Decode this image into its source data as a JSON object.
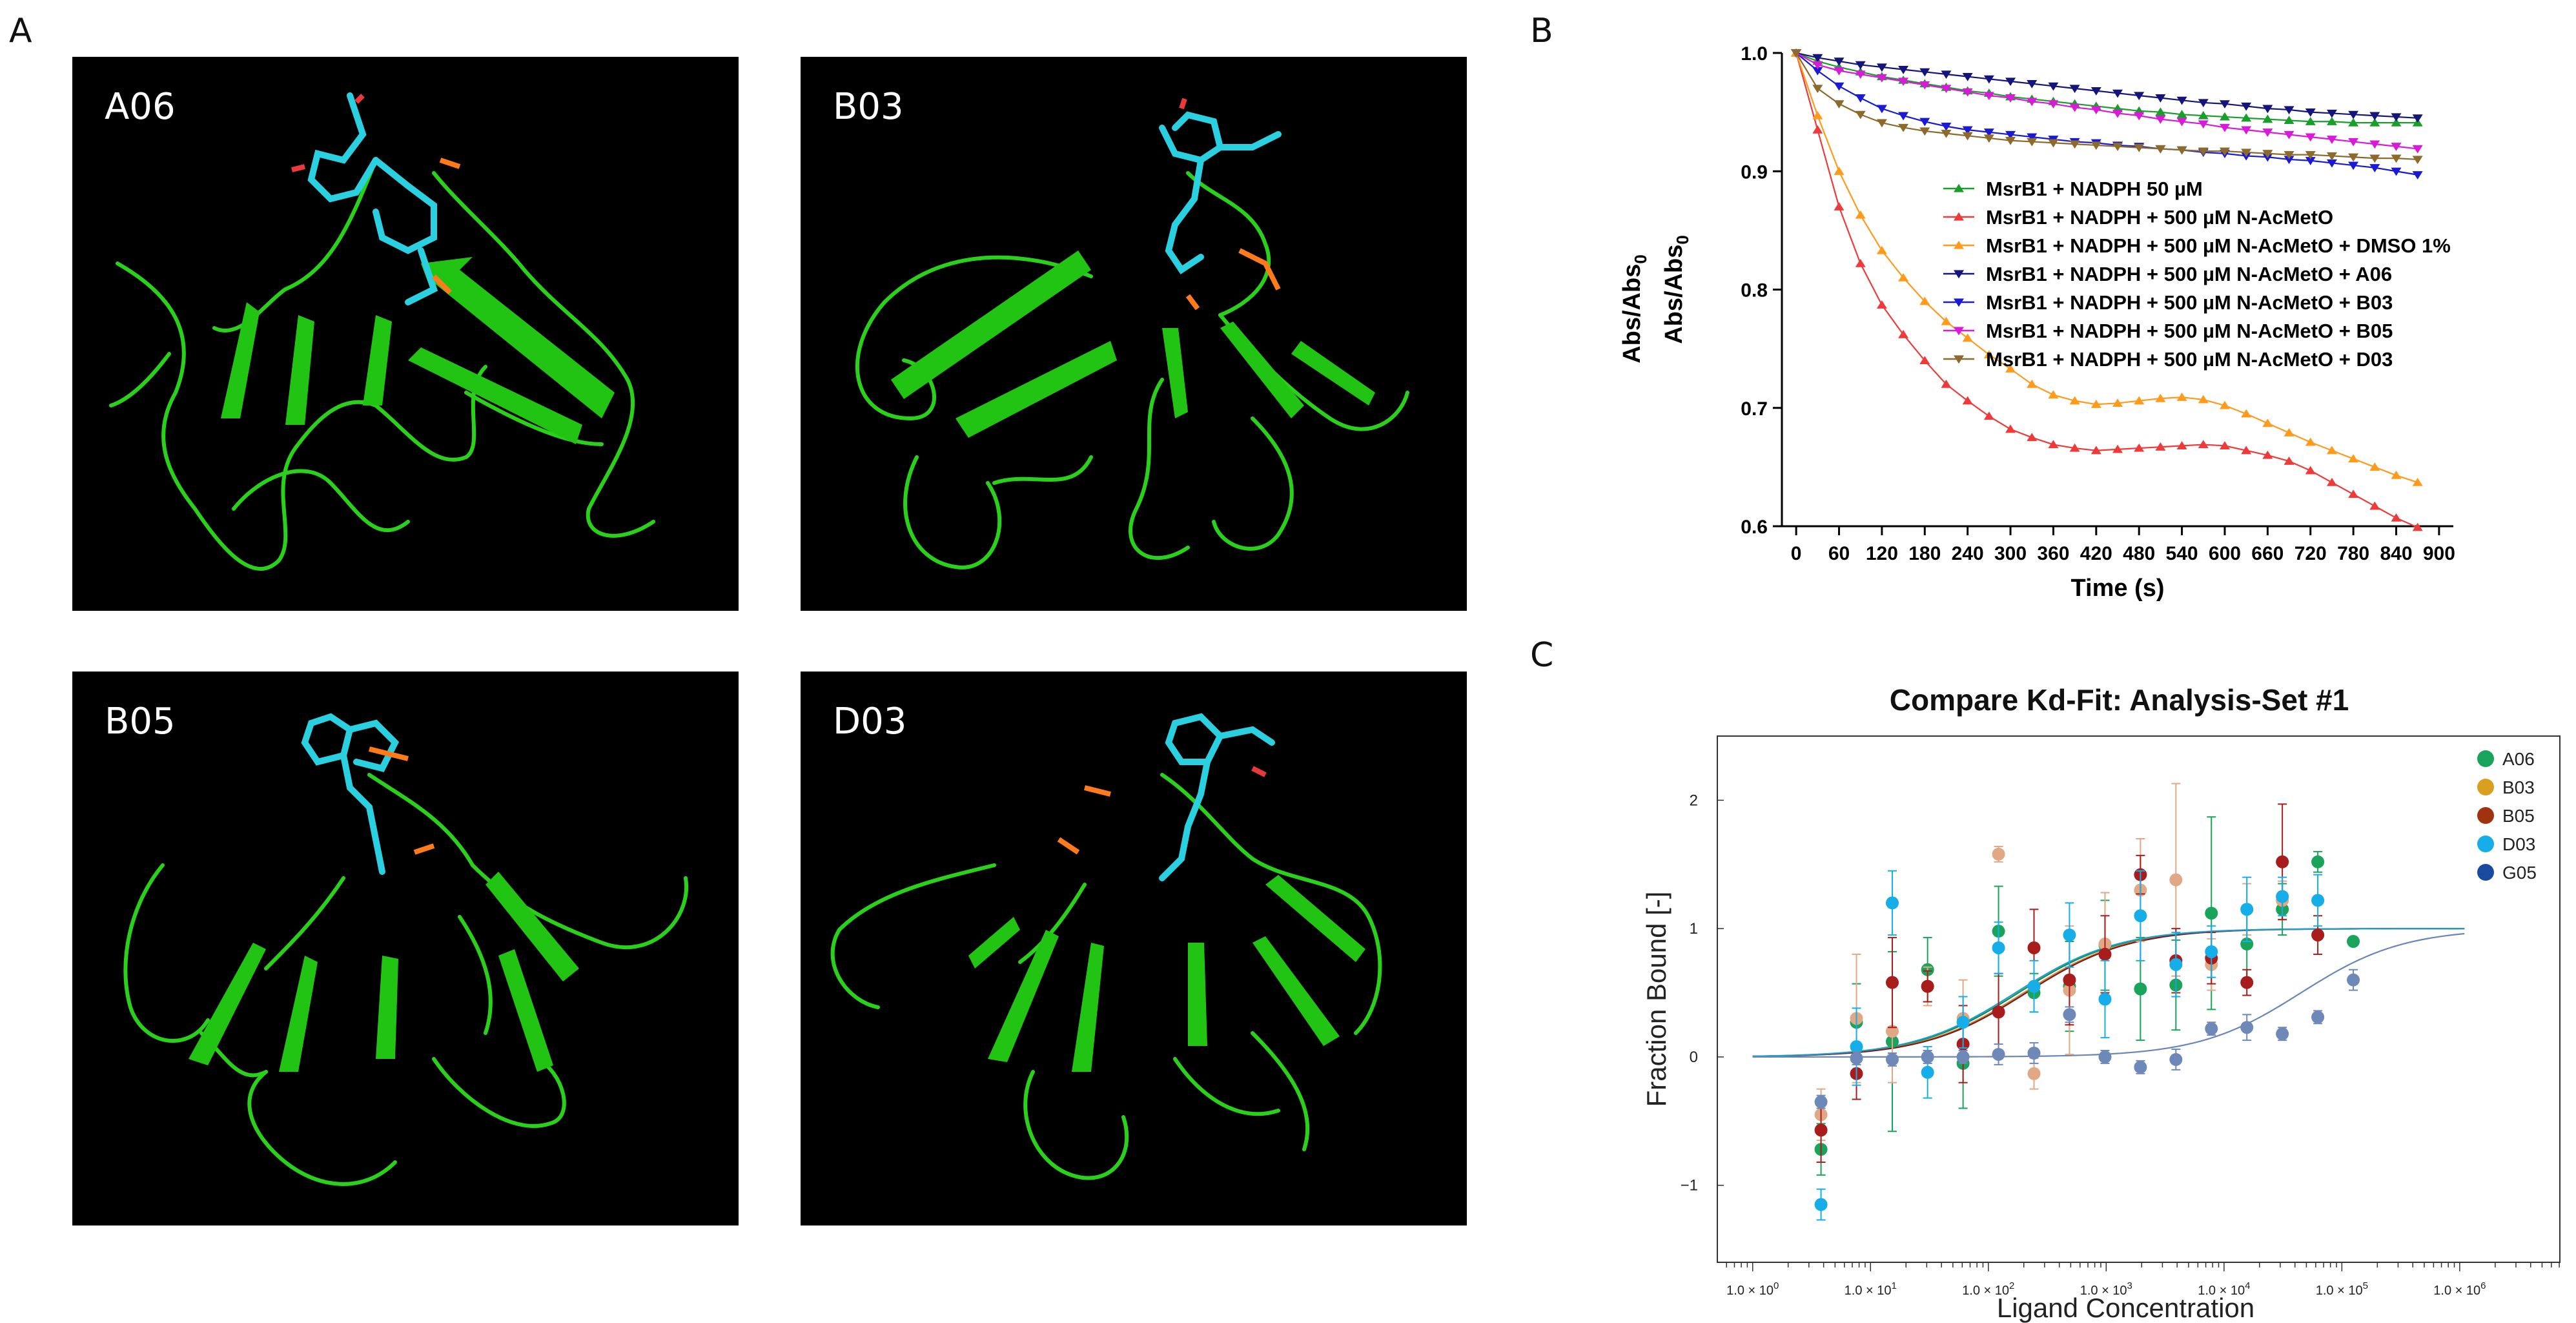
{
  "panel_labels": {
    "a": "A",
    "b": "B",
    "c": "C"
  },
  "structures": [
    {
      "label": "A06"
    },
    {
      "label": "B03"
    },
    {
      "label": "B05"
    },
    {
      "label": "D03"
    }
  ],
  "chart_data": [
    {
      "type": "line",
      "xlabel": "Time (s)",
      "ylabel": "Abs/Abs0",
      "ylabel_main": "Abs/Abs",
      "ylabel_sub": "0",
      "xlim": [
        -20,
        920
      ],
      "ylim": [
        0.6,
        1.0
      ],
      "xticks": [
        0,
        60,
        120,
        180,
        240,
        300,
        360,
        420,
        480,
        540,
        600,
        660,
        720,
        780,
        840,
        900
      ],
      "xtick_labels": [
        "0",
        "60",
        "120",
        "180",
        "240",
        "300",
        "360",
        "420",
        "480",
        "540",
        "600",
        "660",
        "720",
        "780",
        "840",
        "900"
      ],
      "yticks": [
        0.6,
        0.7,
        0.8,
        0.9,
        1.0
      ],
      "ytick_labels": [
        "0.6",
        "0.7",
        "0.8",
        "0.9",
        "1.0"
      ],
      "x": [
        0,
        30,
        60,
        90,
        120,
        150,
        180,
        210,
        240,
        270,
        300,
        330,
        360,
        390,
        420,
        450,
        480,
        510,
        540,
        570,
        600,
        630,
        660,
        690,
        720,
        750,
        780,
        810,
        840,
        870
      ],
      "series": [
        {
          "name": "MsrB1 + NADPH 50 µM",
          "color": "#1a9e2a",
          "marker": "triangle-up",
          "values": [
            1.0,
            0.993,
            0.988,
            0.984,
            0.98,
            0.977,
            0.974,
            0.971,
            0.968,
            0.966,
            0.963,
            0.961,
            0.959,
            0.957,
            0.955,
            0.953,
            0.951,
            0.95,
            0.948,
            0.947,
            0.946,
            0.945,
            0.944,
            0.943,
            0.942,
            0.942,
            0.941,
            0.941,
            0.941,
            0.941
          ]
        },
        {
          "name": "MsrB1 + NADPH + 500 µM N-AcMetO",
          "color": "#f03a3a",
          "marker": "triangle-up",
          "values": [
            1.0,
            0.935,
            0.87,
            0.822,
            0.787,
            0.762,
            0.74,
            0.72,
            0.706,
            0.693,
            0.682,
            0.675,
            0.669,
            0.666,
            0.664,
            0.665,
            0.666,
            0.667,
            0.668,
            0.669,
            0.668,
            0.664,
            0.66,
            0.655,
            0.647,
            0.637,
            0.627,
            0.617,
            0.607,
            0.599
          ]
        },
        {
          "name": "MsrB1 + NADPH + 500 µM N-AcMetO + DMSO 1%",
          "color": "#ff9a1a",
          "marker": "triangle-up",
          "values": [
            1.0,
            0.947,
            0.9,
            0.863,
            0.833,
            0.81,
            0.79,
            0.773,
            0.759,
            0.745,
            0.733,
            0.72,
            0.711,
            0.706,
            0.703,
            0.704,
            0.706,
            0.708,
            0.709,
            0.707,
            0.702,
            0.695,
            0.687,
            0.679,
            0.671,
            0.664,
            0.657,
            0.65,
            0.643,
            0.637
          ]
        },
        {
          "name": "MsrB1 + NADPH + 500 µM N-AcMetO + A06",
          "color": "#14147a",
          "marker": "triangle-down",
          "values": [
            1.0,
            0.996,
            0.993,
            0.99,
            0.988,
            0.986,
            0.984,
            0.982,
            0.98,
            0.978,
            0.976,
            0.974,
            0.972,
            0.97,
            0.968,
            0.966,
            0.964,
            0.962,
            0.96,
            0.958,
            0.957,
            0.955,
            0.953,
            0.952,
            0.95,
            0.949,
            0.948,
            0.947,
            0.946,
            0.945
          ]
        },
        {
          "name": "MsrB1 + NADPH + 500 µM N-AcMetO + B03",
          "color": "#1a1ad6",
          "marker": "triangle-down",
          "values": [
            1.0,
            0.985,
            0.972,
            0.962,
            0.953,
            0.947,
            0.942,
            0.938,
            0.935,
            0.933,
            0.931,
            0.929,
            0.927,
            0.925,
            0.924,
            0.922,
            0.921,
            0.919,
            0.918,
            0.916,
            0.915,
            0.913,
            0.912,
            0.91,
            0.909,
            0.907,
            0.905,
            0.903,
            0.9,
            0.897
          ]
        },
        {
          "name": "MsrB1 + NADPH + 500 µM N-AcMetO + B05",
          "color": "#d91ad9",
          "marker": "triangle-down",
          "values": [
            1.0,
            0.99,
            0.985,
            0.982,
            0.979,
            0.976,
            0.973,
            0.97,
            0.967,
            0.964,
            0.962,
            0.959,
            0.957,
            0.954,
            0.952,
            0.949,
            0.947,
            0.944,
            0.942,
            0.94,
            0.937,
            0.935,
            0.933,
            0.931,
            0.929,
            0.927,
            0.925,
            0.923,
            0.921,
            0.919
          ]
        },
        {
          "name": "MsrB1 + NADPH + 500 µM N-AcMetO + D03",
          "color": "#8b6a2b",
          "marker": "triangle-down",
          "values": [
            1.0,
            0.97,
            0.957,
            0.948,
            0.941,
            0.937,
            0.934,
            0.932,
            0.93,
            0.928,
            0.926,
            0.925,
            0.924,
            0.923,
            0.922,
            0.921,
            0.92,
            0.919,
            0.918,
            0.917,
            0.917,
            0.916,
            0.915,
            0.914,
            0.914,
            0.913,
            0.912,
            0.911,
            0.911,
            0.91
          ]
        }
      ]
    },
    {
      "type": "scatter",
      "title": "Compare Kd-Fit: Analysis-Set #1",
      "xlabel": "Ligand Concentration",
      "ylabel": "Fraction Bound [-]",
      "xscale": "log",
      "xlim_exp": [
        -0.3,
        6.85
      ],
      "ylim": [
        -1.6,
        2.5
      ],
      "xtick_exps": [
        0,
        1,
        2,
        3,
        4,
        5,
        6
      ],
      "xtick_labels": [
        "1.0 × 10",
        "1.0 × 10",
        "1.0 × 10",
        "1.0 × 10",
        "1.0 × 10",
        "1.0 × 10",
        "1.0 × 10"
      ],
      "xtick_sups": [
        "0",
        "1",
        "2",
        "3",
        "4",
        "5",
        "6"
      ],
      "yticks": [
        -1,
        0,
        1,
        2
      ],
      "ytick_labels": [
        "−1",
        "0",
        "1",
        "2"
      ],
      "legend": [
        "A06",
        "B03",
        "B05",
        "D03",
        "G05"
      ],
      "fits": [
        {
          "name": "A06 fit",
          "color": "#168a50",
          "kd": 180
        },
        {
          "name": "B03 fit",
          "color": "#c98a3a",
          "kd": 200
        },
        {
          "name": "B05 fit",
          "color": "#7a1c1c",
          "kd": 210
        },
        {
          "name": "D03 fit",
          "color": "#1a9fcf",
          "kd": 170
        },
        {
          "name": "G05 fit",
          "color": "#6a86b8",
          "kd": 45000
        }
      ],
      "series": [
        {
          "name": "A06",
          "color": "#1aa35a",
          "legend_color": "#1aa35a",
          "x": [
            3.8,
            7.6,
            15.3,
            30.5,
            61,
            122,
            244,
            488,
            977,
            1953,
            3906,
            7812,
            15625,
            31250,
            62500,
            125000
          ],
          "y": [
            -0.72,
            0.27,
            0.12,
            0.68,
            -0.05,
            0.98,
            0.5,
            0.55,
            0.87,
            0.53,
            0.56,
            1.12,
            0.88,
            1.15,
            1.52,
            0.9
          ],
          "err": [
            0.2,
            0.3,
            0.7,
            0.25,
            0.35,
            0.35,
            0.15,
            0.35,
            0.35,
            0.4,
            0.35,
            0.75,
            0.3,
            0.2,
            0.08,
            0.0
          ]
        },
        {
          "name": "B03",
          "color": "#e0a884",
          "legend_color": "#d9a020",
          "x": [
            3.8,
            7.6,
            15.3,
            30.5,
            61,
            122,
            244,
            488,
            977,
            1953,
            3906,
            7812,
            15625,
            31250
          ],
          "y": [
            -0.45,
            0.3,
            0.2,
            0.55,
            0.3,
            1.58,
            -0.13,
            0.52,
            0.88,
            1.3,
            1.38,
            0.72,
            1.15,
            1.22
          ],
          "err": [
            0.2,
            0.5,
            0.4,
            0.15,
            0.3,
            0.06,
            0.12,
            0.5,
            0.4,
            0.4,
            0.75,
            0.2,
            0.2,
            0.15
          ]
        },
        {
          "name": "B05",
          "color": "#a81c1c",
          "legend_color": "#a0320f",
          "x": [
            3.8,
            7.6,
            15.3,
            30.5,
            61,
            122,
            244,
            488,
            977,
            1953,
            3906,
            7812,
            15625,
            31250,
            62500
          ],
          "y": [
            -0.57,
            -0.13,
            0.58,
            0.55,
            0.1,
            0.35,
            0.85,
            0.6,
            0.8,
            1.42,
            0.75,
            0.77,
            0.58,
            1.52,
            0.95
          ],
          "err": [
            0.25,
            0.2,
            0.35,
            0.12,
            0.3,
            0.3,
            0.3,
            0.35,
            0.3,
            0.15,
            0.25,
            0.2,
            0.1,
            0.45,
            0.15
          ]
        },
        {
          "name": "D03",
          "color": "#16aee8",
          "legend_color": "#16aee8",
          "x": [
            3.8,
            7.6,
            15.3,
            30.5,
            61,
            122,
            244,
            488,
            977,
            1953,
            3906,
            7812,
            15625,
            31250,
            62500
          ],
          "y": [
            -1.15,
            0.08,
            1.2,
            -0.12,
            0.27,
            0.85,
            0.55,
            0.95,
            0.45,
            1.1,
            0.72,
            0.82,
            1.15,
            1.25,
            1.22
          ],
          "err": [
            0.12,
            0.3,
            0.25,
            0.2,
            0.2,
            0.2,
            0.2,
            0.25,
            0.3,
            0.35,
            0.25,
            0.2,
            0.25,
            0.15,
            0.2
          ]
        },
        {
          "name": "G05",
          "color": "#6e88b8",
          "legend_color": "#1a4aa0",
          "x": [
            3.8,
            7.6,
            15.3,
            30.5,
            61,
            122,
            244,
            488,
            977,
            1953,
            3906,
            7812,
            15625,
            31250,
            62500,
            125000
          ],
          "y": [
            -0.35,
            -0.01,
            -0.02,
            0.0,
            0.0,
            0.02,
            0.03,
            0.33,
            0.0,
            -0.08,
            -0.02,
            0.22,
            0.23,
            0.18,
            0.31,
            0.6
          ],
          "err": [
            0.05,
            0.05,
            0.05,
            0.05,
            0.05,
            0.08,
            0.08,
            0.06,
            0.05,
            0.05,
            0.08,
            0.05,
            0.1,
            0.05,
            0.05,
            0.08
          ]
        }
      ]
    }
  ]
}
